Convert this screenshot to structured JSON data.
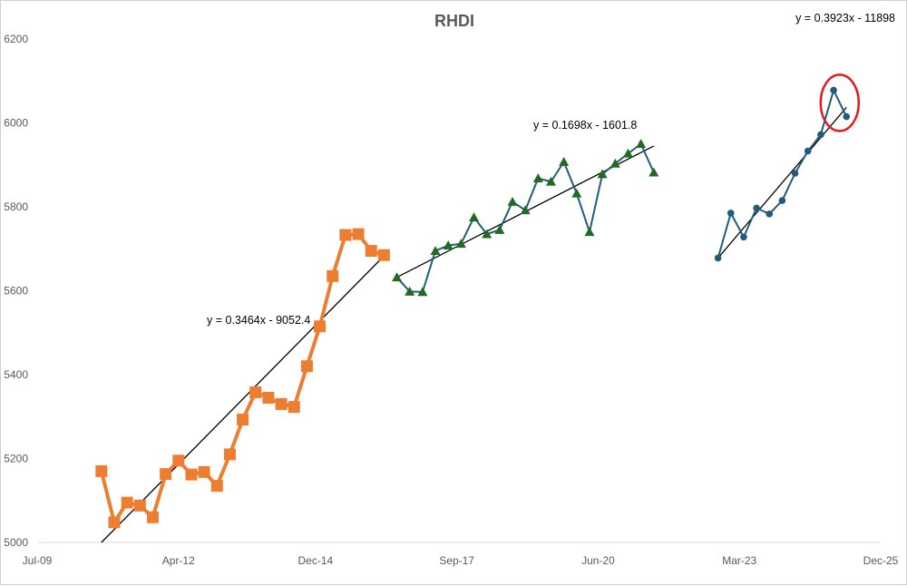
{
  "chart_data": {
    "type": "line",
    "title": "RHDI",
    "xlabel": "",
    "ylabel": "",
    "ylim": [
      5000,
      6200
    ],
    "xlim": [
      "2009-07",
      "2025-12"
    ],
    "y_ticks": [
      5000,
      5200,
      5400,
      5600,
      5800,
      6000,
      6200
    ],
    "x_ticks": [
      {
        "date": "2009-07",
        "label": "Jul-09"
      },
      {
        "date": "2012-04",
        "label": "Apr-12"
      },
      {
        "date": "2014-12",
        "label": "Dec-14"
      },
      {
        "date": "2017-09",
        "label": "Sep-17"
      },
      {
        "date": "2020-06",
        "label": "Jun-20"
      },
      {
        "date": "2023-03",
        "label": "Mar-23"
      },
      {
        "date": "2025-12",
        "label": "Dec-25"
      }
    ],
    "grid": false,
    "legend": "none",
    "series": [
      {
        "color": "#ED7D31",
        "marker": "square",
        "points": [
          {
            "x": "2010-10",
            "y": 5170
          },
          {
            "x": "2011-01",
            "y": 5048
          },
          {
            "x": "2011-04",
            "y": 5095
          },
          {
            "x": "2011-07",
            "y": 5088
          },
          {
            "x": "2011-10",
            "y": 5060
          },
          {
            "x": "2012-01",
            "y": 5163
          },
          {
            "x": "2012-04",
            "y": 5195
          },
          {
            "x": "2012-07",
            "y": 5162
          },
          {
            "x": "2012-10",
            "y": 5168
          },
          {
            "x": "2013-01",
            "y": 5135
          },
          {
            "x": "2013-04",
            "y": 5210
          },
          {
            "x": "2013-07",
            "y": 5293
          },
          {
            "x": "2013-10",
            "y": 5358
          },
          {
            "x": "2014-01",
            "y": 5345
          },
          {
            "x": "2014-04",
            "y": 5330
          },
          {
            "x": "2014-07",
            "y": 5323
          },
          {
            "x": "2014-10",
            "y": 5420
          },
          {
            "x": "2015-01",
            "y": 5515
          },
          {
            "x": "2015-04",
            "y": 5635
          },
          {
            "x": "2015-07",
            "y": 5733
          },
          {
            "x": "2015-10",
            "y": 5735
          },
          {
            "x": "2016-01",
            "y": 5695
          },
          {
            "x": "2016-04",
            "y": 5685
          }
        ]
      },
      {
        "color": "#1F5C7A",
        "marker": "triangle",
        "marker_color": "#1F6B1F",
        "points": [
          {
            "x": "2016-07",
            "y": 5632
          },
          {
            "x": "2016-10",
            "y": 5598
          },
          {
            "x": "2017-01",
            "y": 5597
          },
          {
            "x": "2017-04",
            "y": 5695
          },
          {
            "x": "2017-07",
            "y": 5708
          },
          {
            "x": "2017-10",
            "y": 5712
          },
          {
            "x": "2018-01",
            "y": 5775
          },
          {
            "x": "2018-04",
            "y": 5735
          },
          {
            "x": "2018-07",
            "y": 5745
          },
          {
            "x": "2018-10",
            "y": 5812
          },
          {
            "x": "2019-01",
            "y": 5792
          },
          {
            "x": "2019-04",
            "y": 5868
          },
          {
            "x": "2019-07",
            "y": 5860
          },
          {
            "x": "2019-10",
            "y": 5907
          },
          {
            "x": "2020-01",
            "y": 5832
          },
          {
            "x": "2020-04",
            "y": 5740
          },
          {
            "x": "2020-07",
            "y": 5878
          },
          {
            "x": "2020-10",
            "y": 5903
          },
          {
            "x": "2021-01",
            "y": 5927
          },
          {
            "x": "2021-04",
            "y": 5950
          },
          {
            "x": "2021-07",
            "y": 5882
          }
        ]
      },
      {
        "color": "#1F5C7A",
        "marker": "circle",
        "marker_color": "#1F5C7A",
        "points": [
          {
            "x": "2022-10",
            "y": 5678
          },
          {
            "x": "2023-01",
            "y": 5785
          },
          {
            "x": "2023-04",
            "y": 5728
          },
          {
            "x": "2023-07",
            "y": 5797
          },
          {
            "x": "2023-10",
            "y": 5783
          },
          {
            "x": "2024-01",
            "y": 5815
          },
          {
            "x": "2024-04",
            "y": 5880
          },
          {
            "x": "2024-07",
            "y": 5933
          },
          {
            "x": "2024-10",
            "y": 5972
          },
          {
            "x": "2025-01",
            "y": 6078
          },
          {
            "x": "2025-04",
            "y": 6015
          }
        ]
      }
    ],
    "trendlines": [
      {
        "label": "y = 0.3464x - 9052.4",
        "from": {
          "x": "2010-10",
          "y": 5000
        },
        "to": {
          "x": "2016-04",
          "y": 5683
        }
      },
      {
        "label": "y = 0.1698x - 1601.8",
        "from": {
          "x": "2016-07",
          "y": 5632
        },
        "to": {
          "x": "2021-07",
          "y": 5945
        }
      },
      {
        "label": "y = 0.3923x - 11898",
        "from": {
          "x": "2022-10",
          "y": 5678
        },
        "to": {
          "x": "2025-04",
          "y": 6037
        }
      }
    ],
    "annotations": [
      {
        "type": "ellipse",
        "color": "#E31B1B",
        "around": {
          "x": "2025-02",
          "y": 6050
        }
      }
    ]
  }
}
